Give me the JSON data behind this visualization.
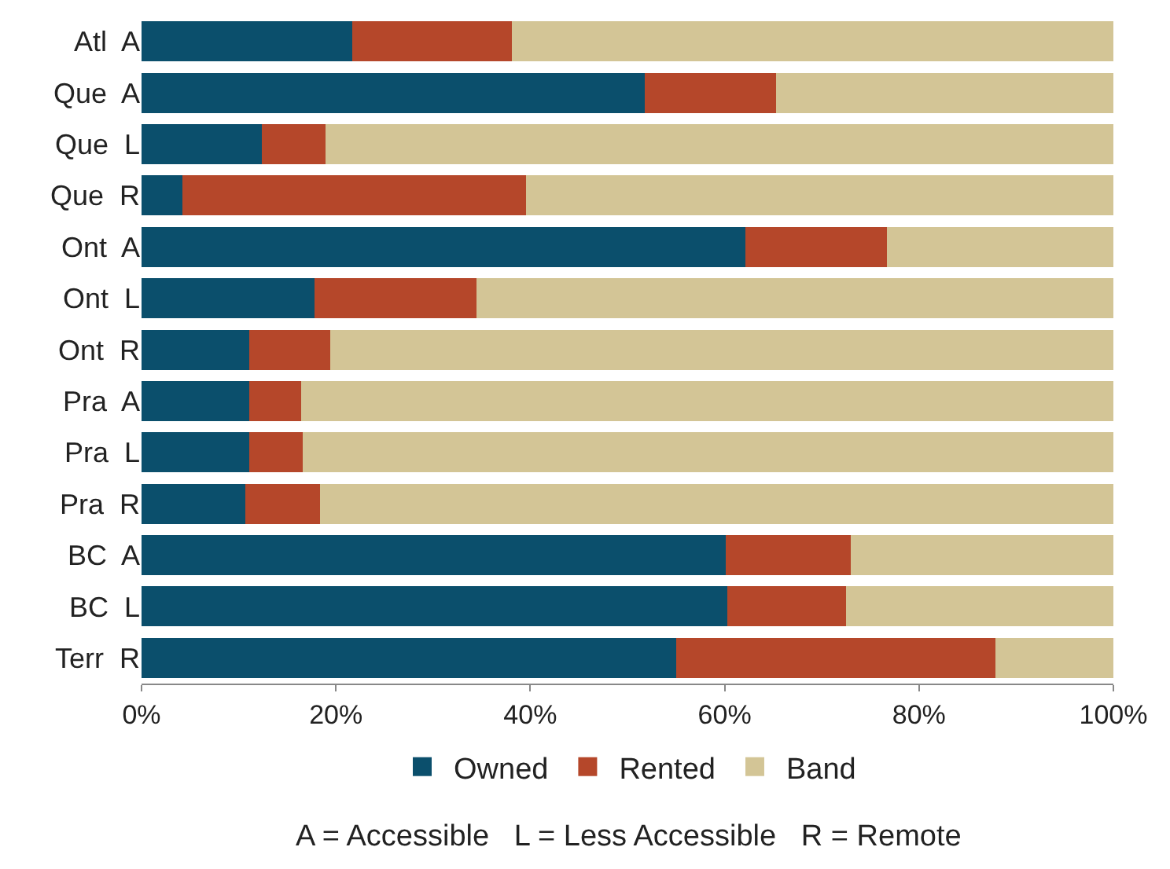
{
  "chart_data": {
    "type": "bar",
    "orientation": "horizontal",
    "stacked": true,
    "categories": [
      "Atl  A",
      "Que  A",
      "Que  L",
      "Que  R",
      "Ont  A",
      "Ont  L",
      "Ont  R",
      "Pra  A",
      "Pra  L",
      "Pra  R",
      "BC  A",
      "BC  L",
      "Terr  R"
    ],
    "series": [
      {
        "name": "Owned",
        "color": "#0b4f6c",
        "values": [
          21.7,
          51.8,
          12.4,
          4.2,
          62.1,
          17.8,
          11.1,
          11.1,
          11.1,
          10.7,
          60.1,
          60.3,
          55.0
        ]
      },
      {
        "name": "Rented",
        "color": "#b5472a",
        "values": [
          16.4,
          13.5,
          6.5,
          35.4,
          14.6,
          16.7,
          8.3,
          5.3,
          5.5,
          7.7,
          12.9,
          12.2,
          32.9
        ]
      },
      {
        "name": "Band",
        "color": "#d3c596",
        "values": [
          61.9,
          34.7,
          81.1,
          60.4,
          23.3,
          65.5,
          80.6,
          83.6,
          83.4,
          81.6,
          27.0,
          27.5,
          12.1
        ]
      }
    ],
    "xlim": [
      0,
      100
    ],
    "xticks": [
      {
        "value": 0,
        "label": "0%"
      },
      {
        "value": 20,
        "label": "20%"
      },
      {
        "value": 40,
        "label": "40%"
      },
      {
        "value": 60,
        "label": "60%"
      },
      {
        "value": 80,
        "label": "80%"
      },
      {
        "value": 100,
        "label": "100%"
      }
    ],
    "legend": "bottom",
    "annotations": [
      "A = Accessible   L = Less Accessible   R = Remote"
    ]
  }
}
